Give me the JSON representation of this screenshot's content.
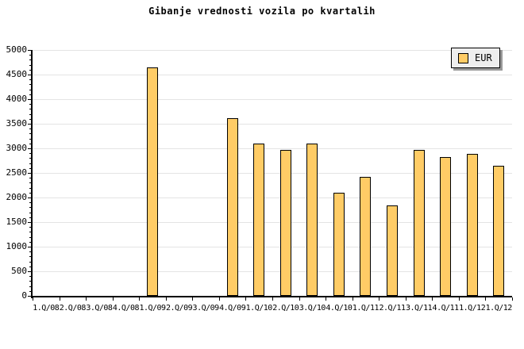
{
  "chart_data": {
    "type": "bar",
    "title": "Gibanje vrednosti vozila po kvartalih",
    "categories": [
      "1.Q/08",
      "2.Q/08",
      "3.Q/08",
      "4.Q/08",
      "1.Q/09",
      "2.Q/09",
      "3.Q/09",
      "4.Q/09",
      "1.Q/10",
      "2.Q/10",
      "3.Q/10",
      "4.Q/10",
      "1.Q/11",
      "2.Q/11",
      "3.Q/11",
      "4.Q/11",
      "1.Q/12",
      "1.Q/12"
    ],
    "series": [
      {
        "name": "EUR",
        "values": [
          0,
          0,
          0,
          0,
          4640,
          0,
          0,
          3620,
          3100,
          2960,
          3100,
          2100,
          2420,
          1840,
          2960,
          2820,
          2890,
          2640
        ]
      }
    ],
    "xlabel": "",
    "ylabel": "",
    "ylim": [
      0,
      5000
    ],
    "ytick_major": 500,
    "ytick_minor": 100,
    "grid": "horizontal-major",
    "legend_position": "top-right",
    "legend_entries": [
      "EUR"
    ],
    "colors": {
      "bar_fill": "#FFCC66",
      "bar_border": "#000000",
      "gridline": "#E4E4E4",
      "axis": "#000000",
      "legend_background": "#EEEEEE",
      "legend_shadow": "#999999",
      "background": "#FFFFFF",
      "text": "#000000"
    }
  }
}
